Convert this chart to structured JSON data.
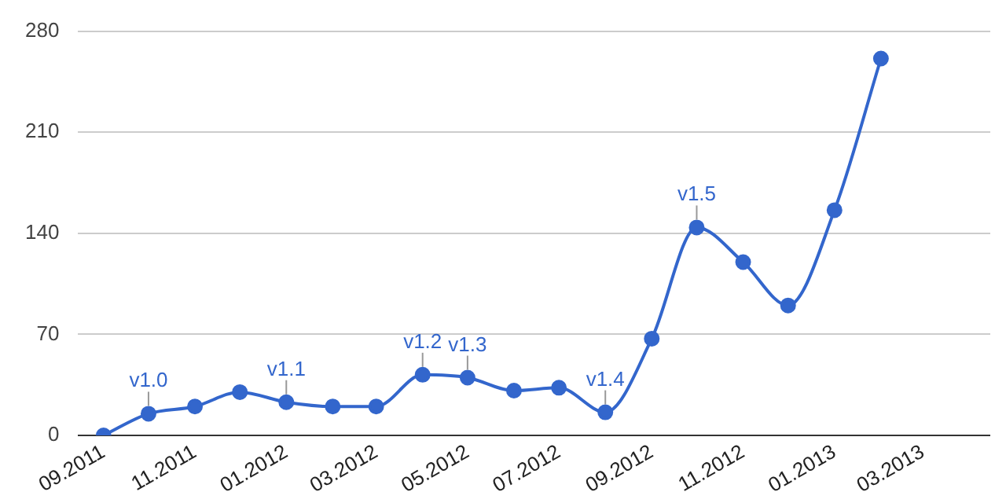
{
  "chart_data": {
    "type": "line",
    "x": [
      "2011-09",
      "2011-10",
      "2011-11",
      "2011-12",
      "2012-01",
      "2012-02",
      "2012-03",
      "2012-04",
      "2012-05",
      "2012-06",
      "2012-07",
      "2012-08",
      "2012-09",
      "2012-10",
      "2012-11",
      "2012-12",
      "2013-01",
      "2013-02"
    ],
    "series": [
      {
        "color": "#3366cc",
        "values": [
          0,
          15,
          20,
          30,
          23,
          20,
          20,
          42,
          40,
          31,
          33,
          16,
          67,
          144,
          120,
          90,
          156,
          261
        ]
      }
    ],
    "xlim": [
      "2011-08-15",
      "2013-04-15"
    ],
    "xticks": [
      {
        "value": "2011-09",
        "label": "09.2011"
      },
      {
        "value": "2011-11",
        "label": "11.2011"
      },
      {
        "value": "2012-01",
        "label": "01.2012"
      },
      {
        "value": "2012-03",
        "label": "03.2012"
      },
      {
        "value": "2012-05",
        "label": "05.2012"
      },
      {
        "value": "2012-07",
        "label": "07.2012"
      },
      {
        "value": "2012-09",
        "label": "09.2012"
      },
      {
        "value": "2012-11",
        "label": "11.2012"
      },
      {
        "value": "2013-01",
        "label": "01.2013"
      },
      {
        "value": "2013-03",
        "label": "03.2013"
      }
    ],
    "ylim": [
      0,
      280
    ],
    "yticks": [
      0,
      70,
      140,
      210,
      280
    ],
    "grid": "y",
    "legend": false,
    "marker": "circle",
    "line_style": "solid",
    "annotations": [
      {
        "text": "v1.0",
        "x": "2011-10",
        "y": 15
      },
      {
        "text": "v1.1",
        "x": "2012-01",
        "y": 23
      },
      {
        "text": "v1.2",
        "x": "2012-04",
        "y": 42
      },
      {
        "text": "v1.3",
        "x": "2012-05",
        "y": 40
      },
      {
        "text": "v1.4",
        "x": "2012-08",
        "y": 16
      },
      {
        "text": "v1.5",
        "x": "2012-10",
        "y": 144
      }
    ]
  }
}
